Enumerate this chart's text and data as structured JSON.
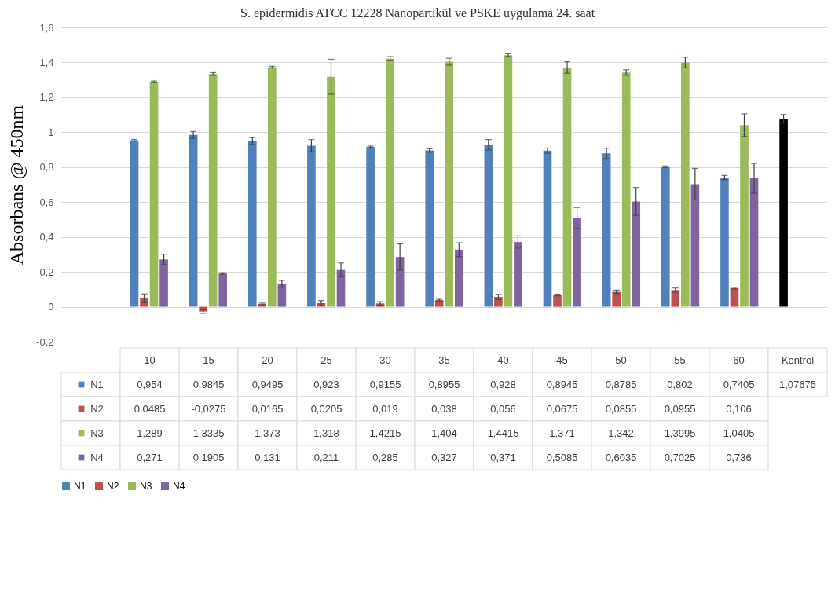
{
  "chart_data": {
    "type": "bar",
    "title": "S. epidermidis ATCC 12228 Nanopartikül ve PSKE uygulama 24. saat",
    "ylabel": "Absorbans @ 450nm",
    "categories": [
      "10",
      "15",
      "20",
      "25",
      "30",
      "35",
      "40",
      "45",
      "50",
      "55",
      "60",
      "Kontrol"
    ],
    "ylim": [
      -0.2,
      1.6
    ],
    "yticks": [
      {
        "value": -0.2,
        "label": "-0,2"
      },
      0,
      {
        "value": 0.2,
        "label": "0,2"
      },
      {
        "value": 0.4,
        "label": "0,4"
      },
      {
        "value": 0.6,
        "label": "0,6"
      },
      {
        "value": 0.8,
        "label": "0,8"
      },
      1,
      {
        "value": 1.2,
        "label": "1,2"
      },
      {
        "value": 1.4,
        "label": "1,4"
      },
      {
        "value": 1.6,
        "label": "1,6"
      }
    ],
    "grid": "y",
    "legend": "bottom",
    "series": [
      {
        "name": "N1",
        "color": "#4f81bd",
        "colors": [
          "#4f81bd",
          "#4f81bd",
          "#4f81bd",
          "#4f81bd",
          "#4f81bd",
          "#4f81bd",
          "#4f81bd",
          "#4f81bd",
          "#4f81bd",
          "#4f81bd",
          "#4f81bd",
          "#000000"
        ],
        "values": [
          0.954,
          0.9845,
          0.9495,
          0.923,
          0.9155,
          0.8955,
          0.928,
          0.8945,
          0.8785,
          0.802,
          0.7405,
          1.07675
        ],
        "errors": [
          0.005,
          0.02,
          0.02,
          0.035,
          0.005,
          0.01,
          0.03,
          0.015,
          0.03,
          0.005,
          0.012,
          0.025
        ],
        "value_labels": [
          "0,954",
          "0,9845",
          "0,9495",
          "0,923",
          "0,9155",
          "0,8955",
          "0,928",
          "0,8945",
          "0,8785",
          "0,802",
          "0,7405",
          "1,07675"
        ]
      },
      {
        "name": "N2",
        "color": "#c0504d",
        "values": [
          0.0485,
          -0.0275,
          0.0165,
          0.0205,
          0.019,
          0.038,
          0.056,
          0.0675,
          0.0855,
          0.0955,
          0.106,
          null
        ],
        "errors": [
          0.025,
          0.01,
          0.005,
          0.015,
          0.01,
          0.005,
          0.015,
          0.005,
          0.01,
          0.012,
          0.005,
          null
        ],
        "value_labels": [
          "0,0485",
          "-0,0275",
          "0,0165",
          "0,0205",
          "0,019",
          "0,038",
          "0,056",
          "0,0675",
          "0,0855",
          "0,0955",
          "0,106",
          null
        ]
      },
      {
        "name": "N3",
        "color": "#9bbb59",
        "values": [
          1.289,
          1.3335,
          1.373,
          1.318,
          1.4215,
          1.404,
          1.4415,
          1.371,
          1.342,
          1.3995,
          1.0405,
          null
        ],
        "errors": [
          0.005,
          0.008,
          0.005,
          0.1,
          0.012,
          0.02,
          0.008,
          0.033,
          0.016,
          0.03,
          0.065,
          null
        ],
        "value_labels": [
          "1,289",
          "1,3335",
          "1,373",
          "1,318",
          "1,4215",
          "1,404",
          "1,4415",
          "1,371",
          "1,342",
          "1,3995",
          "1,0405",
          null
        ]
      },
      {
        "name": "N4",
        "color": "#8064a2",
        "values": [
          0.271,
          0.1905,
          0.131,
          0.211,
          0.285,
          0.327,
          0.371,
          0.5085,
          0.6035,
          0.7025,
          0.736,
          null
        ],
        "errors": [
          0.03,
          0.005,
          0.02,
          0.04,
          0.075,
          0.04,
          0.035,
          0.06,
          0.08,
          0.09,
          0.085,
          null
        ],
        "value_labels": [
          "0,271",
          "0,1905",
          "0,131",
          "0,211",
          "0,285",
          "0,327",
          "0,371",
          "0,5085",
          "0,6035",
          "0,7025",
          "0,736",
          null
        ]
      }
    ]
  }
}
